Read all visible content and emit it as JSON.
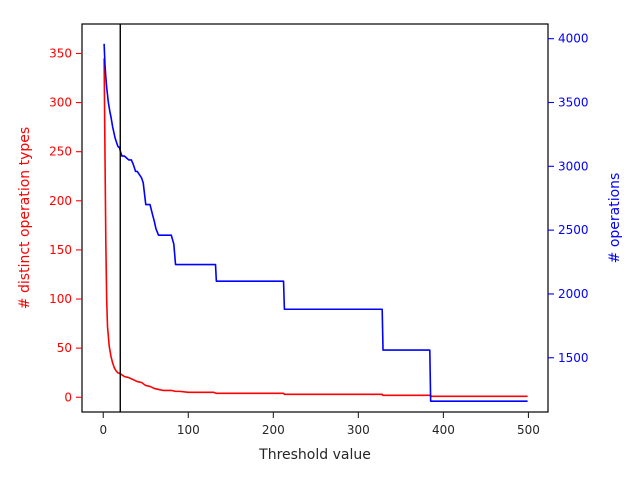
{
  "chart_data": {
    "type": "line",
    "xlabel": "Threshold value",
    "ylabel_left": "# distinct operation types",
    "ylabel_right": "# operations",
    "xlim": [
      -25,
      523
    ],
    "ylim_left": [
      -15,
      380
    ],
    "ylim_right": [
      1075,
      4115
    ],
    "xticks": [
      0,
      100,
      200,
      300,
      400,
      500
    ],
    "yticks_left": [
      0,
      50,
      100,
      150,
      200,
      250,
      300,
      350
    ],
    "yticks_right": [
      1500,
      2000,
      2500,
      3000,
      3500,
      4000
    ],
    "vertical_marker_x": 20,
    "colors": {
      "left_axis": "#ff0000",
      "right_axis": "#0000ff",
      "marker": "#000000",
      "frame": "#000000"
    },
    "grid": false,
    "series": [
      {
        "name": "# distinct operation types",
        "axis": "left",
        "color": "#ff0000",
        "x": [
          1,
          2,
          3,
          4,
          5,
          7,
          9,
          11,
          13,
          15,
          17,
          20,
          25,
          30,
          35,
          40,
          45,
          50,
          55,
          60,
          65,
          70,
          80,
          85,
          90,
          100,
          130,
          133,
          200,
          212,
          213,
          250,
          300,
          328,
          329,
          385,
          386,
          450,
          499
        ],
        "y": [
          345,
          250,
          160,
          100,
          72,
          52,
          42,
          35,
          30,
          27,
          25,
          24,
          21,
          20,
          18,
          16,
          15,
          12,
          11,
          9,
          8,
          7,
          7,
          6,
          6,
          5,
          5,
          4,
          4,
          4,
          3,
          3,
          3,
          3,
          2,
          2,
          1,
          1,
          1
        ]
      },
      {
        "name": "# operations",
        "axis": "right",
        "color": "#0000ff",
        "x": [
          1,
          2,
          3,
          4,
          5,
          6,
          7,
          8,
          9,
          10,
          11,
          12,
          13,
          14,
          15,
          16,
          17,
          18,
          19,
          20,
          21,
          22,
          25,
          30,
          33,
          35,
          38,
          40,
          45,
          47,
          50,
          55,
          58,
          60,
          62,
          65,
          70,
          80,
          83,
          85,
          90,
          100,
          132,
          133,
          200,
          212,
          213,
          250,
          300,
          328,
          329,
          350,
          384,
          385,
          450,
          499
        ],
        "y": [
          3960,
          3800,
          3700,
          3620,
          3560,
          3500,
          3460,
          3420,
          3390,
          3350,
          3310,
          3280,
          3250,
          3220,
          3200,
          3180,
          3160,
          3150,
          3150,
          3120,
          3100,
          3080,
          3080,
          3050,
          3050,
          3020,
          2960,
          2960,
          2910,
          2870,
          2700,
          2700,
          2620,
          2570,
          2510,
          2460,
          2460,
          2460,
          2390,
          2230,
          2230,
          2230,
          2230,
          2100,
          2100,
          2100,
          1880,
          1880,
          1880,
          1880,
          1560,
          1560,
          1560,
          1160,
          1160,
          1160
        ]
      }
    ]
  }
}
